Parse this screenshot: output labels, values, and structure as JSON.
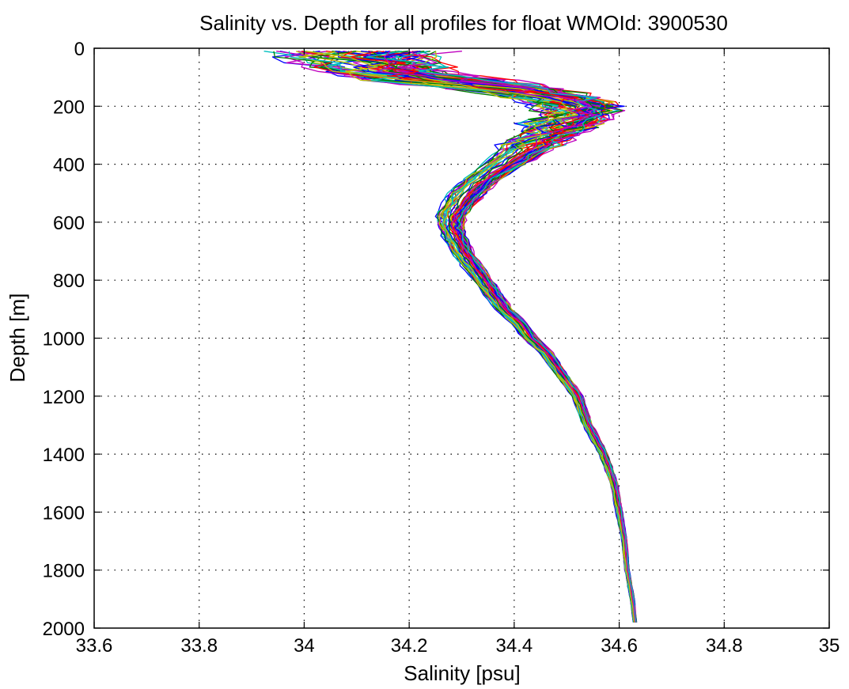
{
  "chart_data": {
    "type": "line",
    "title": "Salinity vs. Depth for all profiles for float WMOId: 3900530",
    "xlabel": "Salinity [psu]",
    "ylabel": "Depth [m]",
    "xlim": [
      33.6,
      35
    ],
    "ylim": [
      0,
      2000
    ],
    "y_reversed": true,
    "grid": true,
    "x_ticks": [
      "33.6",
      "33.8",
      "34",
      "34.2",
      "34.4",
      "34.6",
      "34.8",
      "35"
    ],
    "y_ticks": [
      "0",
      "200",
      "400",
      "600",
      "800",
      "1000",
      "1200",
      "1400",
      "1600",
      "1800",
      "2000"
    ],
    "series_colors": [
      "#0000ff",
      "#008000",
      "#ff0000",
      "#00bfbf",
      "#bf00bf",
      "#bfbf00"
    ],
    "profile_count": 60,
    "depth": [
      10,
      30,
      50,
      80,
      110,
      140,
      170,
      200,
      230,
      260,
      300,
      350,
      400,
      450,
      500,
      550,
      580,
      620,
      660,
      700,
      750,
      800,
      850,
      900,
      950,
      1000,
      1050,
      1100,
      1150,
      1200,
      1300,
      1400,
      1500,
      1600,
      1700,
      1800,
      1900,
      1980
    ],
    "mean_salinity": [
      34.1,
      34.1,
      34.12,
      34.15,
      34.25,
      34.38,
      34.47,
      34.51,
      34.52,
      34.49,
      34.46,
      34.42,
      34.38,
      34.34,
      34.31,
      34.29,
      34.28,
      34.28,
      34.29,
      34.3,
      34.32,
      34.34,
      34.36,
      34.38,
      34.41,
      34.43,
      34.46,
      34.48,
      34.5,
      34.52,
      34.54,
      34.57,
      34.59,
      34.6,
      34.61,
      34.615,
      34.625,
      34.63
    ],
    "spread": [
      0.13,
      0.13,
      0.12,
      0.11,
      0.12,
      0.1,
      0.08,
      0.07,
      0.06,
      0.06,
      0.05,
      0.05,
      0.04,
      0.035,
      0.035,
      0.03,
      0.028,
      0.025,
      0.022,
      0.02,
      0.02,
      0.018,
      0.017,
      0.016,
      0.015,
      0.014,
      0.013,
      0.012,
      0.011,
      0.01,
      0.009,
      0.008,
      0.007,
      0.006,
      0.005,
      0.004,
      0.004,
      0.003
    ]
  }
}
